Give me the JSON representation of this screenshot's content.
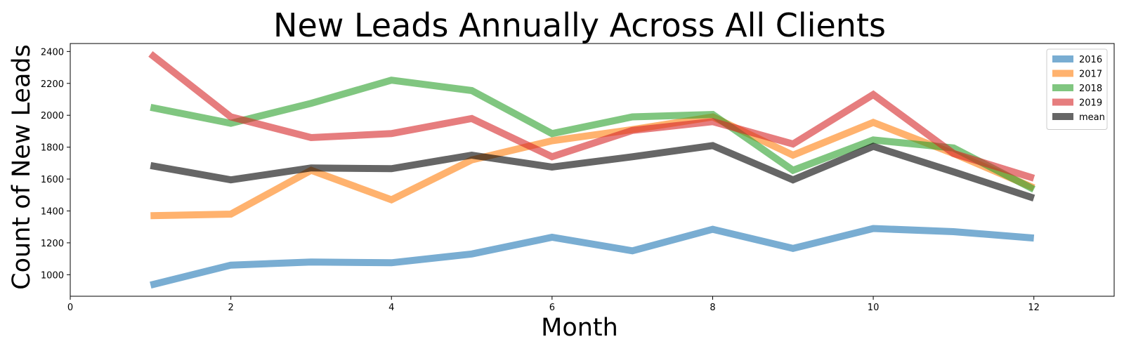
{
  "chart_data": {
    "type": "line",
    "title": "New Leads Annually Across All Clients",
    "xlabel": "Month",
    "ylabel": "Count of New Leads",
    "xlim": [
      0,
      13
    ],
    "ylim": [
      865,
      2450
    ],
    "xticks": [
      0,
      2,
      4,
      6,
      8,
      10,
      12
    ],
    "yticks": [
      1000,
      1200,
      1400,
      1600,
      1800,
      2000,
      2200,
      2400
    ],
    "grid": false,
    "legend_position": "top-right",
    "x": [
      1,
      2,
      3,
      4,
      5,
      6,
      7,
      8,
      9,
      10,
      11,
      12
    ],
    "series": [
      {
        "name": "2016",
        "color": "#1f77b4",
        "values": [
          935,
          1060,
          1080,
          1075,
          1130,
          1235,
          1150,
          1285,
          1165,
          1290,
          1270,
          1230
        ]
      },
      {
        "name": "2017",
        "color": "#ff7f0e",
        "values": [
          1370,
          1380,
          1655,
          1470,
          1720,
          1840,
          1910,
          1990,
          1750,
          1955,
          1760,
          1545
        ]
      },
      {
        "name": "2018",
        "color": "#2ca02c",
        "values": [
          2050,
          1950,
          2075,
          2220,
          2155,
          1885,
          1990,
          2005,
          1655,
          1845,
          1795,
          1535
        ]
      },
      {
        "name": "2019",
        "color": "#d62728",
        "values": [
          2385,
          1990,
          1860,
          1885,
          1980,
          1740,
          1905,
          1960,
          1820,
          2130,
          1760,
          1605
        ]
      },
      {
        "name": "mean",
        "color": "#000000",
        "values": [
          1685,
          1595,
          1670,
          1665,
          1750,
          1675,
          1740,
          1810,
          1595,
          1805,
          1645,
          1480
        ]
      }
    ]
  }
}
